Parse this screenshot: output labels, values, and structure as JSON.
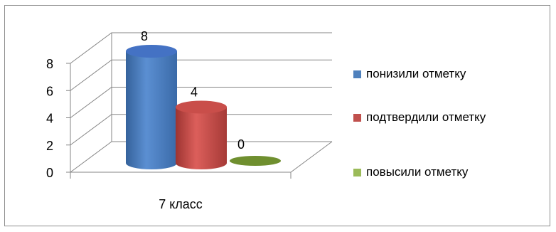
{
  "chart_data": {
    "type": "bar",
    "style": "3d-cylinder",
    "categories": [
      "7 класс"
    ],
    "series": [
      {
        "name": "понизили отметку",
        "values": [
          8
        ],
        "color": "#4f81bd"
      },
      {
        "name": "подтвердили отметку",
        "values": [
          4
        ],
        "color": "#c0504d"
      },
      {
        "name": "повысили отметку",
        "values": [
          0
        ],
        "color": "#9bbb59"
      }
    ],
    "y_ticks": [
      "0",
      "2",
      "4",
      "6",
      "8"
    ],
    "ylim": [
      0,
      8
    ],
    "data_labels": [
      "8",
      "4",
      "0"
    ],
    "grid": true,
    "legend_position": "right"
  }
}
